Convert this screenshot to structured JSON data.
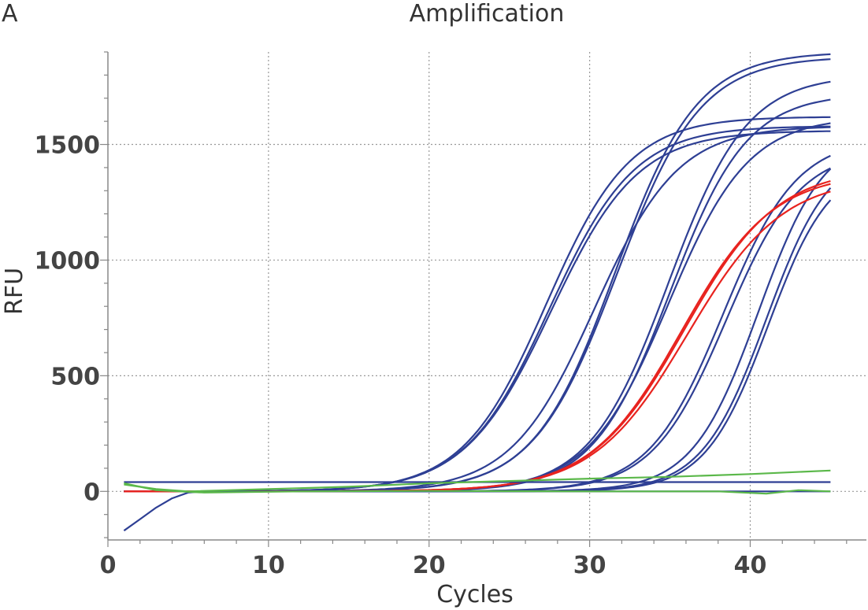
{
  "panel_label": "A",
  "chart_data": {
    "type": "line",
    "title": "Amplification",
    "xlabel": "Cycles",
    "ylabel": "RFU",
    "xlim": [
      0,
      46.5
    ],
    "ylim": [
      -210,
      1900
    ],
    "x_ticks": [
      0,
      10,
      20,
      30,
      40
    ],
    "y_ticks": [
      0,
      500,
      1000,
      1500
    ],
    "x_minor_step": 2,
    "y_minor_step": 100,
    "grid": true,
    "grid_style": "dotted",
    "colors": {
      "blue": "#2e3f94",
      "red": "#e8231f",
      "green": "#5bb84a",
      "axis": "#888888",
      "grid": "#999999"
    },
    "baseline": {
      "x_start": 1,
      "x_end": 45,
      "y": 0
    },
    "series": [
      {
        "color": "#2e3f94",
        "curve": {
          "type": "sigmoid",
          "max": 1620,
          "mid": 27.3,
          "slope": 2.6
        }
      },
      {
        "color": "#2e3f94",
        "curve": {
          "type": "sigmoid",
          "max": 1580,
          "mid": 27.5,
          "slope": 2.65
        }
      },
      {
        "color": "#2e3f94",
        "curve": {
          "type": "sigmoid",
          "max": 1560,
          "mid": 27.6,
          "slope": 2.7
        }
      },
      {
        "color": "#2e3f94",
        "curve": {
          "type": "sigmoid",
          "max": 1900,
          "mid": 31.6,
          "slope": 2.55
        }
      },
      {
        "color": "#2e3f94",
        "curve": {
          "type": "sigmoid",
          "max": 1880,
          "mid": 31.7,
          "slope": 2.6
        }
      },
      {
        "color": "#2e3f94",
        "curve": {
          "type": "sigmoid",
          "max": 1580,
          "mid": 30.3,
          "slope": 2.6
        }
      },
      {
        "color": "#2e3f94",
        "curve": {
          "type": "sigmoid",
          "max": 1620,
          "mid": 34.9,
          "slope": 2.5
        }
      },
      {
        "color": "#2e3f94",
        "curve": {
          "type": "sigmoid",
          "max": 1720,
          "mid": 35.0,
          "slope": 2.4
        }
      },
      {
        "color": "#2e3f94",
        "curve": {
          "type": "sigmoid",
          "max": 1800,
          "mid": 34.9,
          "slope": 2.45
        }
      },
      {
        "color": "#2e3f94",
        "curve": {
          "type": "sigmoid",
          "max": 1530,
          "mid": 38.3,
          "slope": 2.3
        }
      },
      {
        "color": "#2e3f94",
        "curve": {
          "type": "sigmoid",
          "max": 1480,
          "mid": 38.5,
          "slope": 2.3
        }
      },
      {
        "color": "#2e3f94",
        "curve": {
          "type": "sigmoid",
          "max": 1550,
          "mid": 40.5,
          "slope": 2.05
        }
      },
      {
        "color": "#2e3f94",
        "curve": {
          "type": "sigmoid",
          "max": 1430,
          "mid": 41.1,
          "slope": 1.95
        }
      },
      {
        "color": "#2e3f94",
        "curve": {
          "type": "sigmoid",
          "max": 1490,
          "mid": 41.0,
          "slope": 2.0
        }
      },
      {
        "color": "#e8231f",
        "curve": {
          "type": "sigmoid",
          "max": 1380,
          "mid": 35.7,
          "slope": 2.85
        }
      },
      {
        "color": "#e8231f",
        "curve": {
          "type": "sigmoid",
          "max": 1400,
          "mid": 35.9,
          "slope": 2.9
        }
      },
      {
        "color": "#e8231f",
        "curve": {
          "type": "sigmoid",
          "max": 1360,
          "mid": 36.1,
          "slope": 2.95
        }
      },
      {
        "color": "#2e3f94",
        "x": [
          1,
          2,
          3,
          4,
          5,
          6,
          8,
          10,
          45
        ],
        "y": [
          -170,
          -120,
          -70,
          -30,
          -5,
          0,
          0,
          0,
          0
        ]
      },
      {
        "color": "#2e3f94",
        "x": [
          1,
          45
        ],
        "y": [
          40,
          40
        ]
      },
      {
        "color": "#5bb84a",
        "x": [
          1,
          3,
          5,
          10,
          15,
          20,
          25,
          30,
          35,
          40,
          45
        ],
        "y": [
          30,
          10,
          0,
          10,
          20,
          35,
          45,
          55,
          63,
          75,
          90
        ]
      },
      {
        "color": "#5bb84a",
        "x": [
          1,
          3,
          6,
          12,
          20,
          30,
          38,
          41,
          43,
          45
        ],
        "y": [
          35,
          5,
          -5,
          0,
          2,
          0,
          0,
          -10,
          5,
          0
        ]
      }
    ]
  }
}
